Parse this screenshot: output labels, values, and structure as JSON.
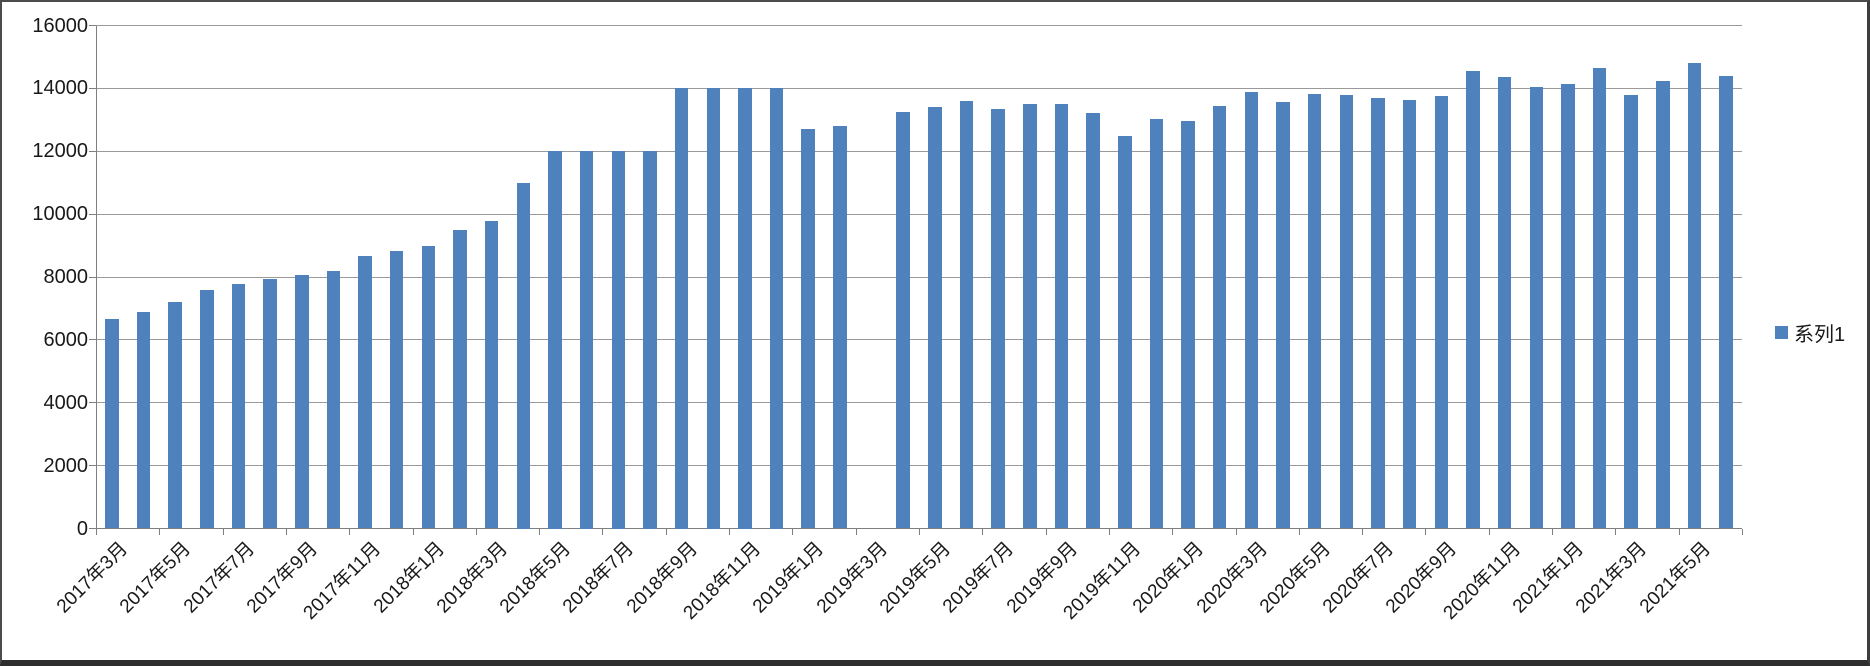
{
  "chart_data": {
    "type": "bar",
    "title": "",
    "categories": [
      "2017年3月",
      "2017年4月",
      "2017年5月",
      "2017年6月",
      "2017年7月",
      "2017年8月",
      "2017年9月",
      "2017年10月",
      "2017年11月",
      "2017年12月",
      "2018年1月",
      "2018年2月",
      "2018年3月",
      "2018年4月",
      "2018年5月",
      "2018年6月",
      "2018年7月",
      "2018年8月",
      "2018年9月",
      "2018年10月",
      "2018年11月",
      "2018年12月",
      "2019年1月",
      "2019年2月",
      "2019年3月",
      "2019年4月",
      "2019年5月",
      "2019年6月",
      "2019年7月",
      "2019年8月",
      "2019年9月",
      "2019年10月",
      "2019年11月",
      "2019年12月",
      "2020年1月",
      "2020年2月",
      "2020年3月",
      "2020年4月",
      "2020年5月",
      "2020年6月",
      "2020年7月",
      "2020年8月",
      "2020年9月",
      "2020年10月",
      "2020年11月",
      "2020年12月",
      "2021年1月",
      "2021年2月",
      "2021年3月",
      "2021年4月",
      "2021年5月",
      "2021年6月"
    ],
    "series": [
      {
        "name": "系列1",
        "values": [
          6650,
          6900,
          7200,
          7600,
          7780,
          7930,
          8070,
          8180,
          8670,
          8840,
          8980,
          9480,
          9770,
          11000,
          12000,
          12000,
          12000,
          12000,
          14000,
          14000,
          14000,
          14000,
          12700,
          12790,
          0,
          13240,
          13420,
          13610,
          13340,
          13510,
          13510,
          13210,
          12470,
          13030,
          12960,
          13450,
          13900,
          13560,
          13830,
          13800,
          13680,
          13640,
          13760,
          14540,
          14350,
          14030,
          14150,
          14650,
          13800,
          14230,
          14820,
          14380
        ]
      }
    ],
    "missing_categories": [
      "2019年3月"
    ],
    "x_label_interval": 2,
    "x_first_label": "2017年3月",
    "x_last_label": "2021年5月",
    "ylim": [
      0,
      16000
    ],
    "y_tick_step": 2000,
    "y_ticks": [
      0,
      2000,
      4000,
      6000,
      8000,
      10000,
      12000,
      14000,
      16000
    ],
    "grid": true,
    "legend_position": "right",
    "colors": {
      "bar": "#4F81BD",
      "gridline": "#9a9a9a",
      "axis": "#7f7f7f",
      "text": "#191919",
      "background": "#ffffff",
      "frame": "#3d3d3d"
    }
  },
  "legend": {
    "series1_label": "系列1"
  }
}
